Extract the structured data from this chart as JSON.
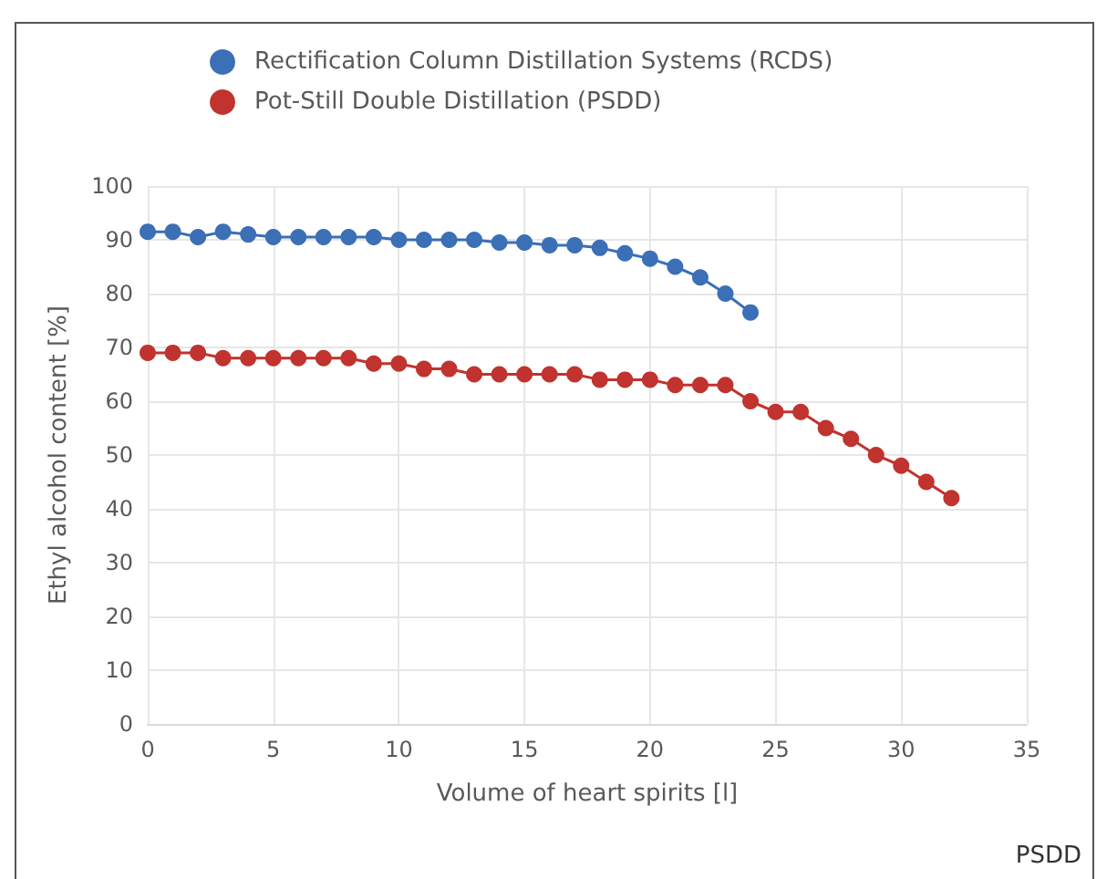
{
  "chart_data": {
    "type": "line",
    "xlabel": "Volume of heart spirits [l]",
    "ylabel": "Ethyl alcohol content [%]",
    "x": [
      0,
      1,
      2,
      3,
      4,
      5,
      6,
      7,
      8,
      9,
      10,
      11,
      12,
      13,
      14,
      15,
      16,
      17,
      18,
      19,
      20,
      21,
      22,
      23,
      24,
      25,
      26,
      27,
      28,
      29,
      30,
      31,
      32
    ],
    "series": [
      {
        "name": "Rectification Column Distillation Systems (RCDS)",
        "color": "#3b6fb6",
        "x": [
          0,
          1,
          2,
          3,
          4,
          5,
          6,
          7,
          8,
          9,
          10,
          11,
          12,
          13,
          14,
          15,
          16,
          17,
          18,
          19,
          20,
          21,
          22,
          23,
          24
        ],
        "values": [
          91.5,
          91.5,
          90.5,
          91.5,
          91,
          90.5,
          90.5,
          90.5,
          90.5,
          90.5,
          90,
          90,
          90,
          90,
          89.5,
          89.5,
          89,
          89,
          88.5,
          87.5,
          86.5,
          85,
          83,
          80,
          76.5
        ]
      },
      {
        "name": "Pot-Still Double Distillation (PSDD)",
        "color": "#c0332e",
        "values": [
          69,
          69,
          69,
          68,
          68,
          68,
          68,
          68,
          68,
          67,
          67,
          66,
          66,
          65,
          65,
          65,
          65,
          65,
          64,
          64,
          64,
          63,
          63,
          63,
          60,
          58,
          58,
          55,
          53,
          50,
          48,
          45,
          42
        ]
      }
    ],
    "xlim": [
      0,
      35
    ],
    "xticks": [
      0,
      5,
      10,
      15,
      20,
      25,
      30,
      35
    ],
    "ylim": [
      0,
      100
    ],
    "yticks": [
      0,
      10,
      20,
      30,
      40,
      50,
      60,
      70,
      80,
      90,
      100
    ],
    "grid": true,
    "legend": "top left",
    "marker": "circle",
    "line_style": "solid",
    "annotations": [
      "PSDD"
    ]
  }
}
